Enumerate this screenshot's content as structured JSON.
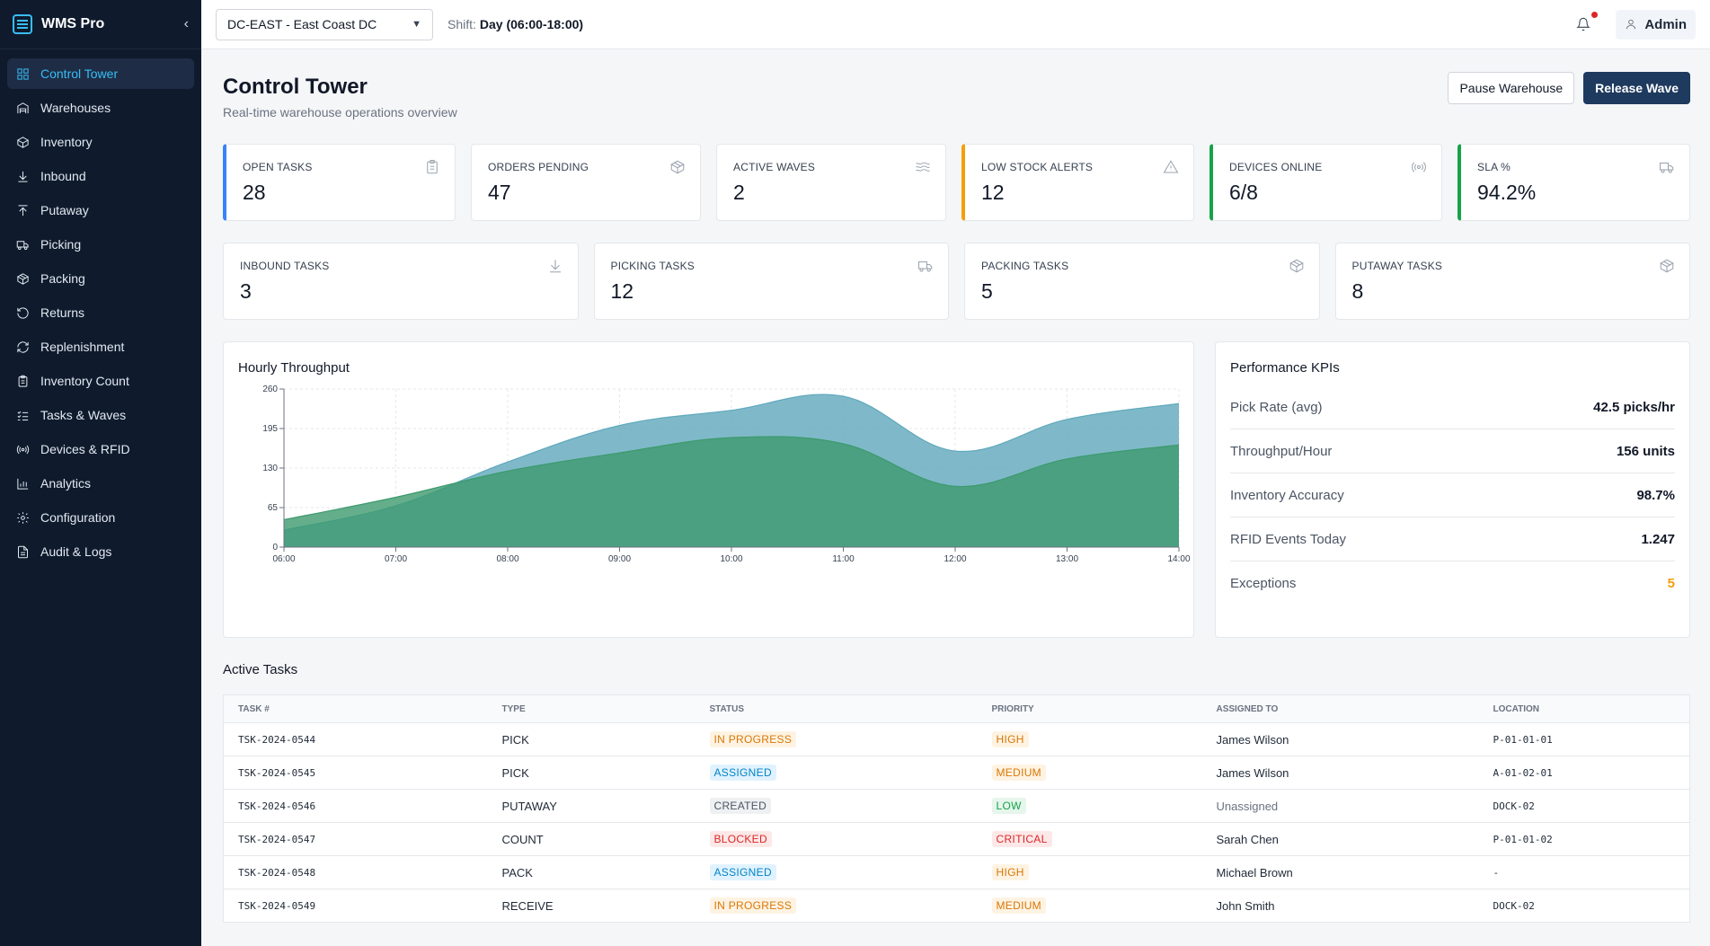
{
  "app": {
    "name": "WMS Pro"
  },
  "sidebar": {
    "items": [
      {
        "label": "Control Tower",
        "icon": "dashboard-icon",
        "active": true
      },
      {
        "label": "Warehouses",
        "icon": "warehouse-icon"
      },
      {
        "label": "Inventory",
        "icon": "box-icon"
      },
      {
        "label": "Inbound",
        "icon": "download-icon"
      },
      {
        "label": "Putaway",
        "icon": "upload-icon"
      },
      {
        "label": "Picking",
        "icon": "truck-icon"
      },
      {
        "label": "Packing",
        "icon": "package-icon"
      },
      {
        "label": "Returns",
        "icon": "rotate-ccw-icon"
      },
      {
        "label": "Replenishment",
        "icon": "refresh-icon"
      },
      {
        "label": "Inventory Count",
        "icon": "clipboard-icon"
      },
      {
        "label": "Tasks & Waves",
        "icon": "list-checks-icon"
      },
      {
        "label": "Devices & RFID",
        "icon": "radio-icon"
      },
      {
        "label": "Analytics",
        "icon": "bar-chart-icon"
      },
      {
        "label": "Configuration",
        "icon": "gear-icon"
      },
      {
        "label": "Audit & Logs",
        "icon": "file-text-icon"
      }
    ]
  },
  "topbar": {
    "warehouse": "DC-EAST - East Coast DC",
    "shift_label": "Shift:",
    "shift_value": "Day (06:00-18:00)",
    "user": "Admin"
  },
  "header": {
    "title": "Control Tower",
    "subtitle": "Real-time warehouse operations overview",
    "pause_label": "Pause Warehouse",
    "release_label": "Release Wave"
  },
  "kpis_top": [
    {
      "label": "OPEN TASKS",
      "value": "28",
      "accent": "#3b82f6",
      "icon": "clipboard-icon"
    },
    {
      "label": "ORDERS PENDING",
      "value": "47",
      "accent": "",
      "icon": "package-icon"
    },
    {
      "label": "ACTIVE WAVES",
      "value": "2",
      "accent": "",
      "icon": "waves-icon"
    },
    {
      "label": "LOW STOCK ALERTS",
      "value": "12",
      "accent": "#f59e0b",
      "icon": "alert-triangle-icon"
    },
    {
      "label": "DEVICES ONLINE",
      "value": "6/8",
      "accent": "#16a34a",
      "icon": "radio-icon"
    },
    {
      "label": "SLA %",
      "value": "94.2%",
      "accent": "#16a34a",
      "icon": "truck-icon"
    }
  ],
  "kpis_bottom": [
    {
      "label": "INBOUND TASKS",
      "value": "3",
      "icon": "download-icon"
    },
    {
      "label": "PICKING TASKS",
      "value": "12",
      "icon": "truck-icon"
    },
    {
      "label": "PACKING TASKS",
      "value": "5",
      "icon": "package-icon"
    },
    {
      "label": "PUTAWAY TASKS",
      "value": "8",
      "icon": "package-icon"
    }
  ],
  "chart_title": "Hourly Throughput",
  "chart_data": {
    "type": "area",
    "title": "Hourly Throughput",
    "categories": [
      "06:00",
      "07:00",
      "08:00",
      "09:00",
      "10:00",
      "11:00",
      "12:00",
      "13:00",
      "14:00"
    ],
    "series": [
      {
        "values": [
          28,
          68,
          140,
          200,
          225,
          248,
          158,
          210,
          236
        ],
        "color": "#5fa8bc"
      },
      {
        "values": [
          45,
          82,
          125,
          155,
          180,
          170,
          100,
          145,
          168
        ],
        "color": "#3d9a6e"
      }
    ],
    "ylim": [
      0,
      260
    ],
    "yticks": [
      0,
      65,
      130,
      195,
      260
    ],
    "grid": true
  },
  "performance": {
    "title": "Performance KPIs",
    "rows": [
      {
        "label": "Pick Rate (avg)",
        "value": "42.5 picks/hr"
      },
      {
        "label": "Throughput/Hour",
        "value": "156 units"
      },
      {
        "label": "Inventory Accuracy",
        "value": "98.7%"
      },
      {
        "label": "RFID Events Today",
        "value": "1.247"
      },
      {
        "label": "Exceptions",
        "value": "5",
        "warn": true
      }
    ]
  },
  "tasks": {
    "title": "Active Tasks",
    "columns": [
      "TASK #",
      "TYPE",
      "STATUS",
      "PRIORITY",
      "ASSIGNED TO",
      "LOCATION"
    ],
    "rows": [
      {
        "id": "TSK-2024-0544",
        "type": "PICK",
        "status": "IN PROGRESS",
        "priority": "HIGH",
        "assigned": "James Wilson",
        "location": "P-01-01-01"
      },
      {
        "id": "TSK-2024-0545",
        "type": "PICK",
        "status": "ASSIGNED",
        "priority": "MEDIUM",
        "assigned": "James Wilson",
        "location": "A-01-02-01"
      },
      {
        "id": "TSK-2024-0546",
        "type": "PUTAWAY",
        "status": "CREATED",
        "priority": "LOW",
        "assigned": "Unassigned",
        "location": "DOCK-02"
      },
      {
        "id": "TSK-2024-0547",
        "type": "COUNT",
        "status": "BLOCKED",
        "priority": "CRITICAL",
        "assigned": "Sarah Chen",
        "location": "P-01-01-02"
      },
      {
        "id": "TSK-2024-0548",
        "type": "PACK",
        "status": "ASSIGNED",
        "priority": "HIGH",
        "assigned": "Michael Brown",
        "location": "-"
      },
      {
        "id": "TSK-2024-0549",
        "type": "RECEIVE",
        "status": "IN PROGRESS",
        "priority": "MEDIUM",
        "assigned": "John Smith",
        "location": "DOCK-02"
      }
    ]
  }
}
